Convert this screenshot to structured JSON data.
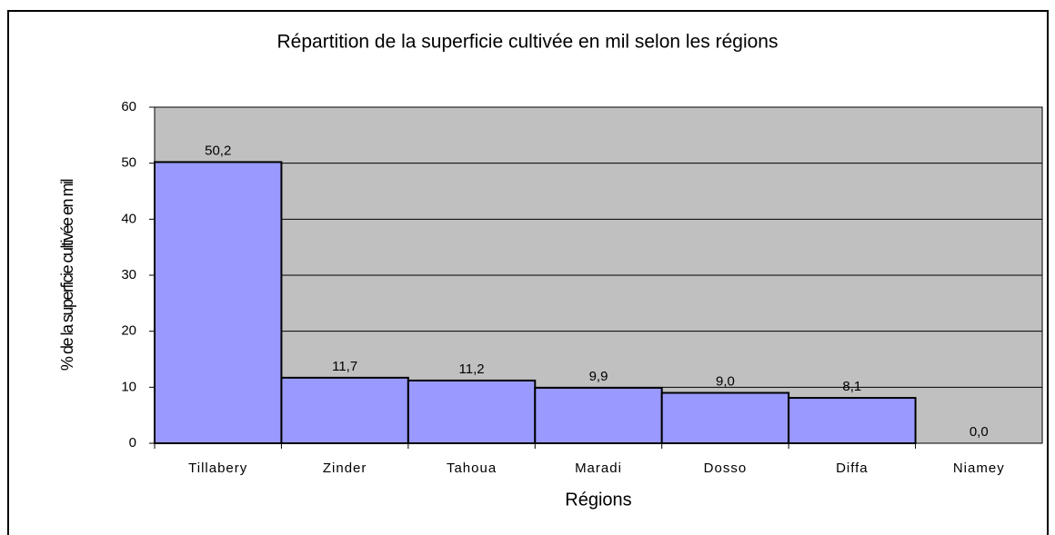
{
  "chart_data": {
    "type": "bar",
    "title": "Répartition de la superficie cultivée en mil selon les régions",
    "x_label": "Régions",
    "y_label": "% de la superficie cultivée en mil",
    "categories": [
      "Tillabery",
      "Zinder",
      "Tahoua",
      "Maradi",
      "Dosso",
      "Diffa",
      "Niamey"
    ],
    "values": [
      50.2,
      11.7,
      11.2,
      9.9,
      9.0,
      8.1,
      0.0
    ],
    "value_labels": [
      "50,2",
      "11,7",
      "11,2",
      "9,9",
      "9,0",
      "8,1",
      "0,0"
    ],
    "color": "#9999ff",
    "ylim": [
      0,
      60
    ],
    "yticks": [
      0,
      10,
      20,
      30,
      40,
      50,
      60
    ],
    "grid": true
  }
}
